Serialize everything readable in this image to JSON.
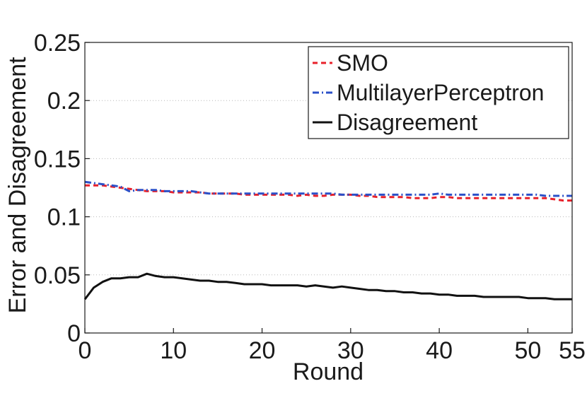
{
  "chart_data": {
    "type": "line",
    "xlabel": "Round",
    "ylabel": "Error and Disagreement",
    "xlim": [
      0,
      55
    ],
    "ylim": [
      0,
      0.25
    ],
    "x_ticks": [
      "0",
      "10",
      "20",
      "30",
      "40",
      "50",
      "55"
    ],
    "x_tick_values": [
      0,
      10,
      20,
      30,
      40,
      50,
      55
    ],
    "y_ticks": [
      "0",
      "0.05",
      "0.1",
      "0.15",
      "0.2",
      "0.25"
    ],
    "y_tick_values": [
      0,
      0.05,
      0.1,
      0.15,
      0.2,
      0.25
    ],
    "grid": "horizontal-dotted",
    "legend_position": "top-right",
    "x": [
      0,
      1,
      2,
      3,
      4,
      5,
      6,
      7,
      8,
      9,
      10,
      11,
      12,
      13,
      14,
      15,
      16,
      17,
      18,
      19,
      20,
      21,
      22,
      23,
      24,
      25,
      26,
      27,
      28,
      29,
      30,
      31,
      32,
      33,
      34,
      35,
      36,
      37,
      38,
      39,
      40,
      41,
      42,
      43,
      44,
      45,
      46,
      47,
      48,
      49,
      50,
      51,
      52,
      53,
      54,
      55
    ],
    "series": [
      {
        "name": "SMO",
        "color": "#e8202a",
        "dash": "dashed",
        "values": [
          0.127,
          0.127,
          0.127,
          0.126,
          0.125,
          0.124,
          0.123,
          0.122,
          0.122,
          0.122,
          0.121,
          0.121,
          0.121,
          0.121,
          0.12,
          0.12,
          0.12,
          0.12,
          0.119,
          0.119,
          0.119,
          0.119,
          0.119,
          0.119,
          0.118,
          0.119,
          0.118,
          0.118,
          0.119,
          0.119,
          0.119,
          0.118,
          0.118,
          0.117,
          0.117,
          0.117,
          0.117,
          0.116,
          0.116,
          0.116,
          0.117,
          0.117,
          0.116,
          0.116,
          0.116,
          0.116,
          0.116,
          0.116,
          0.116,
          0.116,
          0.116,
          0.116,
          0.116,
          0.115,
          0.114,
          0.114
        ]
      },
      {
        "name": "MultilayerPerceptron",
        "color": "#2b50c8",
        "dash": "dashdot",
        "values": [
          0.13,
          0.129,
          0.128,
          0.127,
          0.126,
          0.122,
          0.123,
          0.123,
          0.123,
          0.122,
          0.122,
          0.122,
          0.122,
          0.121,
          0.12,
          0.12,
          0.12,
          0.12,
          0.12,
          0.12,
          0.12,
          0.12,
          0.12,
          0.12,
          0.12,
          0.12,
          0.12,
          0.12,
          0.12,
          0.119,
          0.119,
          0.119,
          0.119,
          0.119,
          0.119,
          0.119,
          0.119,
          0.119,
          0.119,
          0.119,
          0.12,
          0.119,
          0.119,
          0.119,
          0.119,
          0.119,
          0.119,
          0.119,
          0.119,
          0.119,
          0.119,
          0.119,
          0.118,
          0.118,
          0.118,
          0.118
        ]
      },
      {
        "name": "Disagreement",
        "color": "#111111",
        "dash": "solid",
        "values": [
          0.029,
          0.039,
          0.044,
          0.047,
          0.047,
          0.048,
          0.048,
          0.051,
          0.049,
          0.048,
          0.048,
          0.047,
          0.046,
          0.045,
          0.045,
          0.044,
          0.044,
          0.043,
          0.042,
          0.042,
          0.042,
          0.041,
          0.041,
          0.041,
          0.041,
          0.04,
          0.041,
          0.04,
          0.039,
          0.04,
          0.039,
          0.038,
          0.037,
          0.037,
          0.036,
          0.036,
          0.035,
          0.035,
          0.034,
          0.034,
          0.033,
          0.033,
          0.032,
          0.032,
          0.032,
          0.031,
          0.031,
          0.031,
          0.031,
          0.031,
          0.03,
          0.03,
          0.03,
          0.029,
          0.029,
          0.029
        ]
      }
    ]
  }
}
